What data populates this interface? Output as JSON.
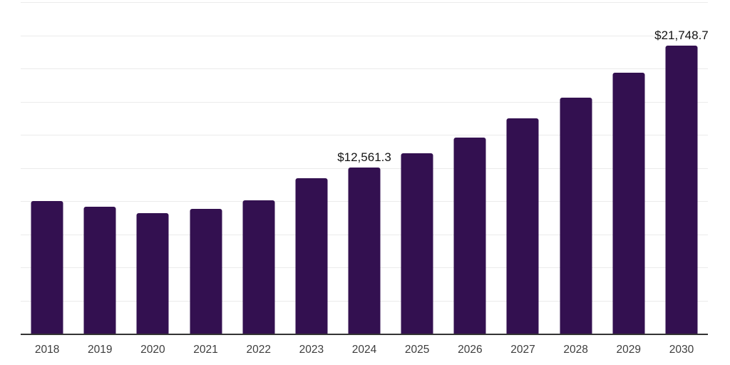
{
  "chart_data": {
    "type": "bar",
    "title": "",
    "xlabel": "",
    "ylabel": "",
    "categories": [
      "2018",
      "2019",
      "2020",
      "2021",
      "2022",
      "2023",
      "2024",
      "2025",
      "2026",
      "2027",
      "2028",
      "2029",
      "2030"
    ],
    "values": [
      10050,
      9620,
      9160,
      9460,
      10110,
      11760,
      12561.3,
      13640,
      14840,
      16270,
      17850,
      19730,
      21748.7
    ],
    "value_labels": {
      "2024": "$12,561.3",
      "2030": "$21,748.7"
    },
    "ylim": [
      0,
      25000
    ],
    "gridline_interval": 2500,
    "grid": true,
    "legend": false,
    "colors": {
      "bar": "#331050",
      "axis": "#333333",
      "grid": "#ebebeb",
      "tick_label": "#3d3d3d",
      "value_label": "#141414",
      "background": "#ffffff"
    }
  }
}
